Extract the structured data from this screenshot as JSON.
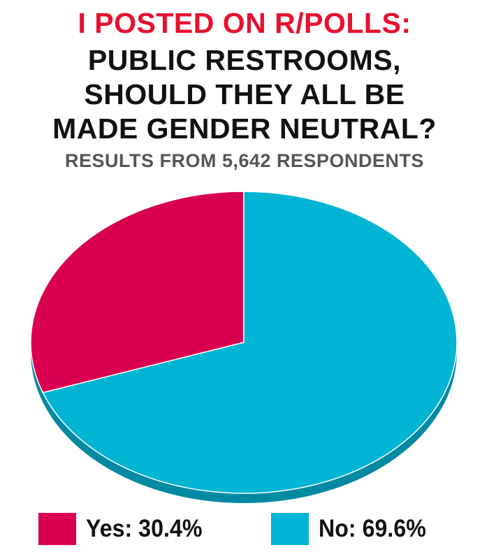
{
  "header": {
    "line1": "I POSTED ON R/POLLS:",
    "title_lines": [
      "PUBLIC RESTROOMS,",
      "SHOULD THEY ALL BE",
      "MADE GENDER NEUTRAL?"
    ],
    "subtitle": "RESULTS FROM 5,642 RESPONDENTS"
  },
  "colors": {
    "accent_red": "#e8102e",
    "yes": "#d9004f",
    "no": "#00b4d4"
  },
  "legend": {
    "yes_label": "Yes: 30.4%",
    "no_label": "No: 69.6%"
  },
  "chart_data": {
    "type": "pie",
    "title": "PUBLIC RESTROOMS, SHOULD THEY ALL BE MADE GENDER NEUTRAL?",
    "subtitle": "RESULTS FROM 5,642 RESPONDENTS",
    "categories": [
      "Yes",
      "No"
    ],
    "values": [
      30.4,
      69.6
    ],
    "unit": "%",
    "legend_position": "bottom"
  }
}
